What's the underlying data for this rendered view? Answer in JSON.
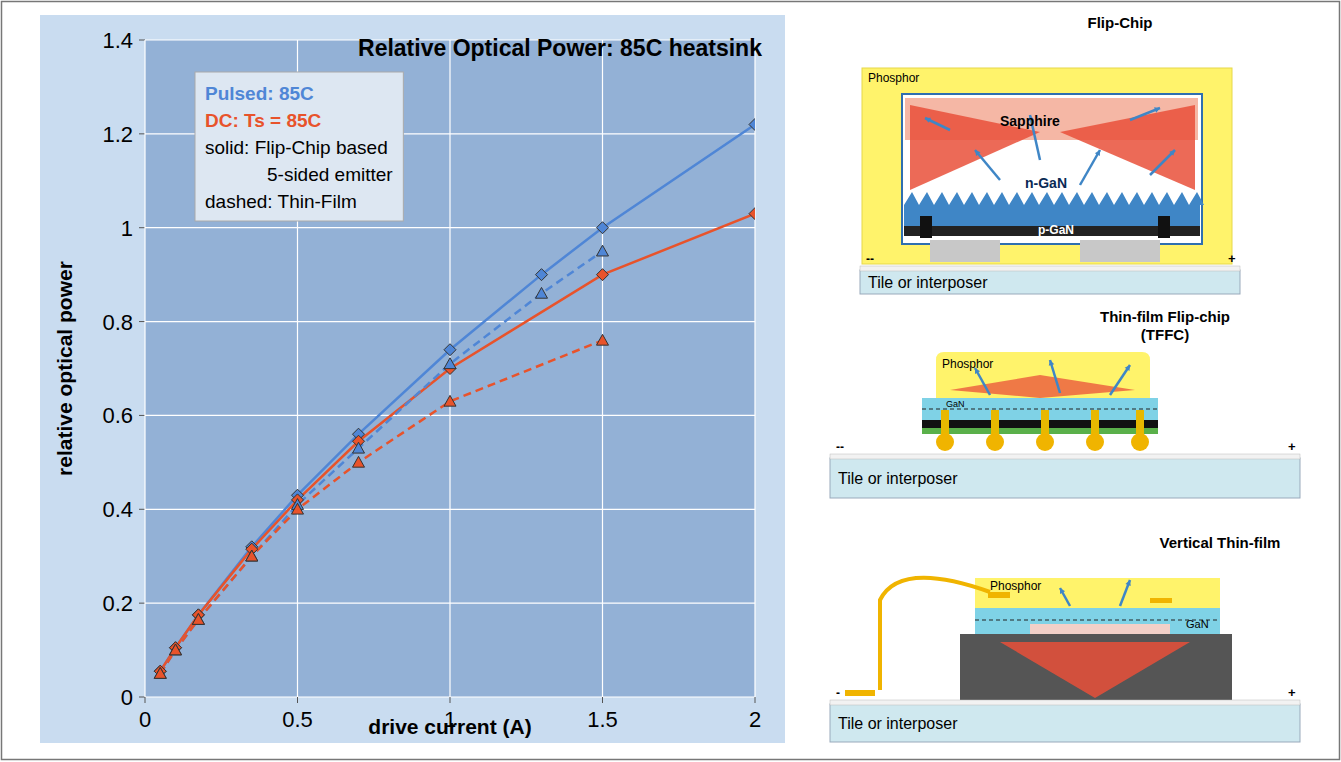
{
  "chart_data": {
    "type": "line",
    "title": "Relative Optical Power: 85C heatsink",
    "x_label": "drive current (A)",
    "y_label": "relative optical power",
    "xlim": [
      0,
      2
    ],
    "xticks": [
      0,
      0.5,
      1,
      1.5,
      2
    ],
    "ylim": [
      0,
      1.4
    ],
    "yticks": [
      0,
      0.2,
      0.4,
      0.6,
      0.8,
      1,
      1.2,
      1.4
    ],
    "grid": true,
    "legend": "top-left",
    "legend_box": [
      {
        "text": "Pulsed: 85C",
        "color": "#4f86d6"
      },
      {
        "text": "DC: Ts = 85C",
        "color": "#e8532b"
      },
      {
        "text": "solid: Flip-Chip based",
        "color": "#000000"
      },
      {
        "text": "5-sided emitter",
        "color": "#000000"
      },
      {
        "text": "dashed: Thin-Film",
        "color": "#000000"
      }
    ],
    "series": [
      {
        "color": "#4f86d6",
        "line_style": "solid",
        "marker": "diamond",
        "x": [
          0.05,
          0.1,
          0.175,
          0.35,
          0.5,
          0.7,
          1.0,
          1.3,
          1.5,
          2.0
        ],
        "values": [
          0.055,
          0.105,
          0.175,
          0.32,
          0.43,
          0.56,
          0.74,
          0.9,
          1.0,
          1.22
        ]
      },
      {
        "color": "#e8532b",
        "line_style": "solid",
        "marker": "diamond",
        "x": [
          0.05,
          0.1,
          0.175,
          0.35,
          0.5,
          0.7,
          1.0,
          1.5,
          2.0
        ],
        "values": [
          0.055,
          0.105,
          0.175,
          0.315,
          0.42,
          0.545,
          0.7,
          0.9,
          1.03
        ]
      },
      {
        "color": "#4f86d6",
        "line_style": "dashed",
        "marker": "triangle",
        "x": [
          0.05,
          0.1,
          0.175,
          0.35,
          0.5,
          0.7,
          1.0,
          1.3,
          1.5
        ],
        "values": [
          0.05,
          0.1,
          0.165,
          0.3,
          0.41,
          0.53,
          0.71,
          0.86,
          0.95
        ]
      },
      {
        "color": "#e8532b",
        "line_style": "dashed",
        "marker": "triangle",
        "x": [
          0.05,
          0.1,
          0.175,
          0.35,
          0.5,
          0.7,
          1.0,
          1.5
        ],
        "values": [
          0.05,
          0.1,
          0.165,
          0.3,
          0.4,
          0.5,
          0.63,
          0.76
        ]
      }
    ]
  },
  "diagrams": [
    {
      "title": "Flip-Chip",
      "phosphor": "Phosphor",
      "substrate": "Sapphire",
      "n_layer": "n-GaN",
      "p_layer": "p-GaN",
      "tile": "Tile or interposer",
      "minus": "--",
      "plus": "+"
    },
    {
      "title": "Thin-film Flip-chip (TFFC)",
      "phosphor": "Phosphor",
      "gan": "GaN",
      "tile": "Tile or interposer",
      "minus": "--",
      "plus": "+"
    },
    {
      "title": "Vertical Thin-film",
      "phosphor": "Phosphor",
      "gan": "GaN",
      "tile": "Tile or interposer",
      "minus": "-",
      "plus": "+"
    }
  ]
}
